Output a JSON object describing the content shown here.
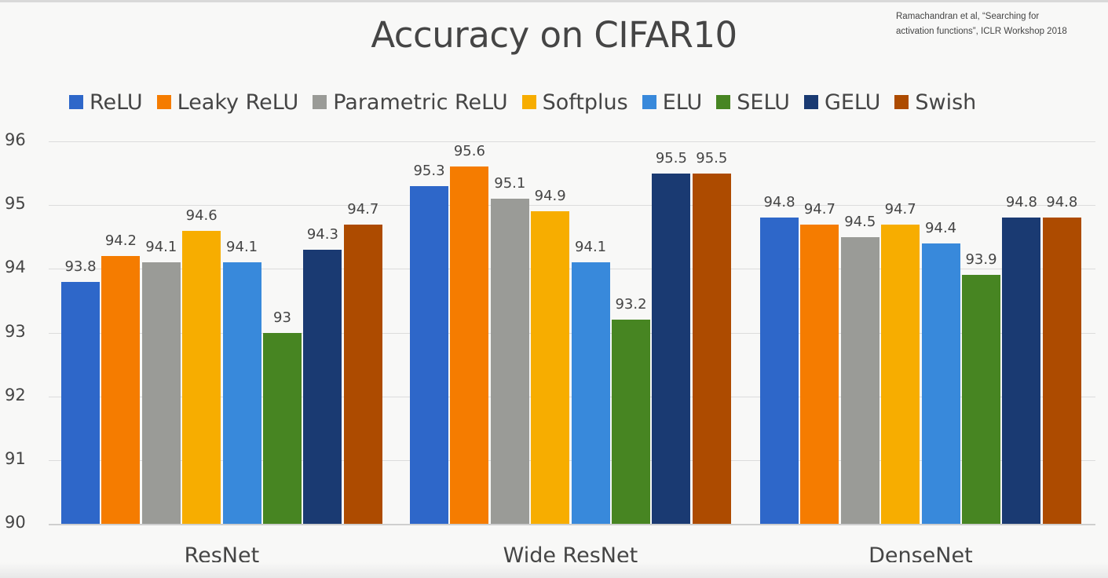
{
  "citation": {
    "line1": "Ramachandran et al, “Searching for",
    "line2": "activation functions”, ICLR Workshop 2018"
  },
  "chart_data": {
    "type": "bar",
    "title": "Accuracy on CIFAR10",
    "xlabel": "",
    "ylabel": "",
    "ylim": [
      90,
      96
    ],
    "yticks": [
      90,
      91,
      92,
      93,
      94,
      95,
      96
    ],
    "grid": true,
    "legend_position": "top",
    "categories": [
      "ResNet",
      "Wide ResNet",
      "DenseNet"
    ],
    "series": [
      {
        "name": "ReLU",
        "color": "#2e67c9",
        "values": [
          93.8,
          95.3,
          94.8
        ]
      },
      {
        "name": "Leaky ReLU",
        "color": "#f57c00",
        "values": [
          94.2,
          95.6,
          94.7
        ]
      },
      {
        "name": "Parametric ReLU",
        "color": "#9a9b97",
        "values": [
          94.1,
          95.1,
          94.5
        ]
      },
      {
        "name": "Softplus",
        "color": "#f7ad00",
        "values": [
          94.6,
          94.9,
          94.7
        ]
      },
      {
        "name": "ELU",
        "color": "#3889db",
        "values": [
          94.1,
          94.1,
          94.4
        ]
      },
      {
        "name": "SELU",
        "color": "#478522",
        "values": [
          93.0,
          93.2,
          93.9
        ]
      },
      {
        "name": "GELU",
        "color": "#1a3a72",
        "values": [
          94.3,
          95.5,
          94.8
        ]
      },
      {
        "name": "Swish",
        "color": "#ad4b00",
        "values": [
          94.7,
          95.5,
          94.8
        ]
      }
    ],
    "value_labels": [
      [
        "93.8",
        "94.2",
        "94.1",
        "94.6",
        "94.1",
        "93",
        "94.3",
        "94.7"
      ],
      [
        "95.3",
        "95.6",
        "95.1",
        "94.9",
        "94.1",
        "93.2",
        "95.5",
        "95.5"
      ],
      [
        "94.8",
        "94.7",
        "94.5",
        "94.7",
        "94.4",
        "93.9",
        "94.8",
        "94.8"
      ]
    ]
  }
}
